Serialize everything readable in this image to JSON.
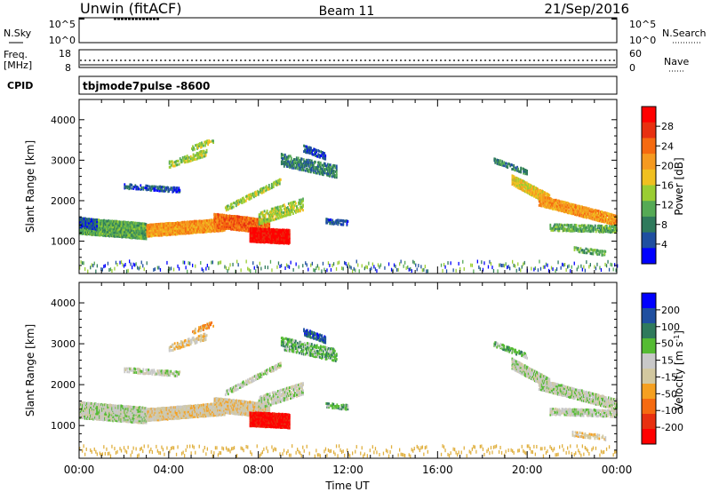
{
  "header": {
    "title_left": "Unwin (fitACF)",
    "title_center": "Beam 11",
    "title_right": "21/Sep/2016"
  },
  "noise_panel": {
    "left_label": "N.Sky",
    "right_label": "N.Search",
    "left_ticks": [
      "10^5",
      "10^0"
    ],
    "right_ticks": [
      "10^5",
      "10^0"
    ]
  },
  "freq_panel": {
    "left_label_1": "Freq.",
    "left_label_2": "[MHz]",
    "right_label": "Nave",
    "left_ticks": [
      "18",
      "8"
    ],
    "right_ticks": [
      "60",
      "0"
    ]
  },
  "cpid": {
    "label": "CPID",
    "value": "tbjmode7pulse  -8600"
  },
  "colors": {
    "power_scale": [
      "#0000ff",
      "#1f4fa0",
      "#2f7a5c",
      "#55aa55",
      "#9acd32",
      "#f0c020",
      "#f59a20",
      "#f56a10",
      "#e83010",
      "#ff0000"
    ],
    "velocity_scale": [
      "#0000ff",
      "#1f4fa0",
      "#2f7a5c",
      "#55bb33",
      "#c8c8c8",
      "#d2c8a0",
      "#f5a020",
      "#f56a10",
      "#e83010",
      "#ff0000"
    ],
    "ground_scatter": "#8a8a6a"
  },
  "chart_data": [
    {
      "type": "heatmap",
      "name_role": "power",
      "ylabel": "Slant Range [km]",
      "ylim": [
        200,
        4500
      ],
      "y_ticks": [
        "1000",
        "2000",
        "3000",
        "4000"
      ],
      "xlim": [
        0,
        24
      ],
      "x_ticks": [
        "00:00",
        "04:00",
        "08:00",
        "12:00",
        "16:00",
        "20:00",
        "00:00"
      ],
      "colorbar": {
        "label": "Power [dB]",
        "ticks": [
          "4",
          "8",
          "12",
          "16",
          "20",
          "24",
          "28"
        ],
        "range": [
          0,
          30
        ]
      }
    },
    {
      "type": "heatmap",
      "name_role": "velocity",
      "ylabel": "Slant Range [km]",
      "ylim": [
        200,
        4500
      ],
      "y_ticks": [
        "1000",
        "2000",
        "3000",
        "4000"
      ],
      "xlim": [
        0,
        24
      ],
      "x_ticks": [
        "00:00",
        "04:00",
        "08:00",
        "12:00",
        "16:00",
        "20:00",
        "00:00"
      ],
      "xlabel": "Time UT",
      "colorbar": {
        "label_main": "Velocity [m s",
        "label_sup": "-1",
        "label_end": "]",
        "ticks": [
          "200",
          "100",
          "50",
          "15",
          "-15",
          "-50",
          "-100",
          "-200"
        ],
        "range": [
          -250,
          250
        ]
      }
    }
  ]
}
